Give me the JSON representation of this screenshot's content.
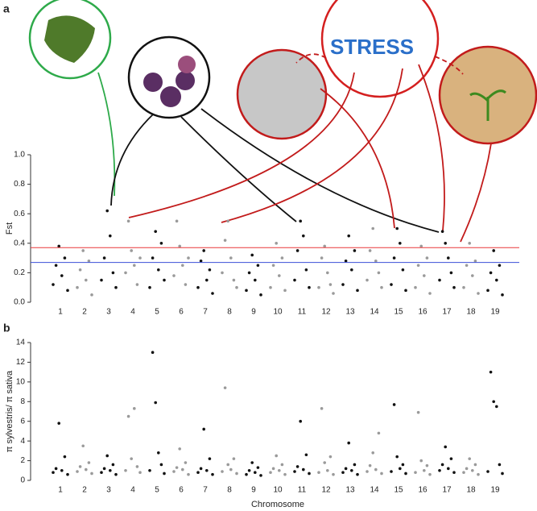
{
  "illustration": {
    "label": "STRESS"
  },
  "chart_data": [
    {
      "type": "scatter",
      "panel_label": "a",
      "ylabel": "Fst",
      "xlim": [
        0,
        20
      ],
      "xticks": [
        1,
        2,
        3,
        4,
        5,
        6,
        7,
        8,
        9,
        10,
        11,
        12,
        13,
        14,
        15,
        16,
        17,
        18,
        19
      ],
      "ylim": [
        0,
        1
      ],
      "yticks": [
        {
          "value": 0,
          "label": "0.0"
        },
        0.2,
        0.4,
        0.6,
        0.8,
        {
          "value": 1,
          "label": "1.0"
        }
      ],
      "colors": [
        "#111111",
        "#9a9a9a"
      ],
      "threshold_lines": [
        {
          "value": 0.37,
          "color": "#e8393a"
        },
        {
          "value": 0.27,
          "color": "#3b4fd8"
        }
      ],
      "x": [
        0.7,
        0.82,
        0.94,
        1.06,
        1.18,
        1.3,
        1.7,
        1.82,
        1.94,
        2.06,
        2.18,
        2.3,
        2.7,
        2.82,
        2.94,
        3.06,
        3.18,
        3.3,
        3.7,
        3.82,
        3.94,
        4.06,
        4.18,
        4.3,
        4.7,
        4.82,
        4.94,
        5.06,
        5.18,
        5.3,
        5.7,
        5.82,
        5.94,
        6.06,
        6.18,
        6.3,
        6.7,
        6.82,
        6.94,
        7.06,
        7.18,
        7.3,
        7.7,
        7.82,
        7.94,
        8.06,
        8.18,
        8.3,
        8.7,
        8.82,
        8.94,
        9.06,
        9.18,
        9.3,
        9.7,
        9.82,
        9.94,
        10.06,
        10.18,
        10.3,
        10.7,
        10.82,
        10.94,
        11.06,
        11.18,
        11.3,
        11.7,
        11.82,
        11.94,
        12.06,
        12.18,
        12.3,
        12.7,
        12.82,
        12.94,
        13.06,
        13.18,
        13.3,
        13.7,
        13.82,
        13.94,
        14.06,
        14.18,
        14.3,
        14.7,
        14.82,
        14.94,
        15.06,
        15.18,
        15.3,
        15.7,
        15.82,
        15.94,
        16.06,
        16.18,
        16.3,
        16.7,
        16.82,
        16.94,
        17.06,
        17.18,
        17.3,
        17.7,
        17.82,
        17.94,
        18.06,
        18.18,
        18.3,
        18.7,
        18.82,
        18.94,
        19.06,
        19.18,
        19.3
      ],
      "values": [
        0.12,
        0.25,
        0.38,
        0.18,
        0.3,
        0.08,
        0.1,
        0.22,
        0.35,
        0.15,
        0.28,
        0.05,
        0.15,
        0.3,
        0.62,
        0.45,
        0.2,
        0.1,
        0.2,
        0.55,
        0.35,
        0.25,
        0.12,
        0.3,
        0.1,
        0.3,
        0.48,
        0.22,
        0.4,
        0.15,
        0.18,
        0.55,
        0.38,
        0.25,
        0.12,
        0.3,
        0.1,
        0.28,
        0.35,
        0.15,
        0.22,
        0.06,
        0.2,
        0.42,
        0.55,
        0.3,
        0.15,
        0.1,
        0.08,
        0.2,
        0.32,
        0.15,
        0.25,
        0.05,
        0.1,
        0.25,
        0.4,
        0.18,
        0.3,
        0.08,
        0.15,
        0.35,
        0.55,
        0.45,
        0.22,
        0.1,
        0.1,
        0.3,
        0.38,
        0.2,
        0.12,
        0.06,
        0.12,
        0.28,
        0.45,
        0.22,
        0.35,
        0.08,
        0.15,
        0.35,
        0.5,
        0.28,
        0.2,
        0.1,
        0.12,
        0.3,
        0.5,
        0.4,
        0.22,
        0.08,
        0.1,
        0.25,
        0.38,
        0.18,
        0.3,
        0.06,
        0.15,
        0.48,
        0.4,
        0.3,
        0.2,
        0.1,
        0.1,
        0.25,
        0.4,
        0.18,
        0.28,
        0.06,
        0.08,
        0.2,
        0.35,
        0.15,
        0.25,
        0.05
      ]
    },
    {
      "type": "scatter",
      "panel_label": "b",
      "ylabel": "π sylvestris/ π sativa",
      "xlabel": "Chromosome",
      "xlim": [
        0,
        20
      ],
      "xticks": [
        1,
        2,
        3,
        4,
        5,
        6,
        7,
        8,
        9,
        10,
        11,
        12,
        13,
        14,
        15,
        16,
        17,
        18,
        19
      ],
      "ylim": [
        0,
        14
      ],
      "yticks": [
        0,
        2,
        4,
        6,
        8,
        10,
        12,
        14
      ],
      "colors": [
        "#111111",
        "#9a9a9a"
      ],
      "x": [
        0.7,
        0.82,
        0.94,
        1.06,
        1.18,
        1.3,
        1.7,
        1.82,
        1.94,
        2.06,
        2.18,
        2.3,
        2.7,
        2.82,
        2.94,
        3.06,
        3.18,
        3.3,
        3.7,
        3.82,
        3.94,
        4.06,
        4.18,
        4.3,
        4.7,
        4.82,
        4.94,
        5.06,
        5.18,
        5.3,
        5.7,
        5.82,
        5.94,
        6.06,
        6.18,
        6.3,
        6.7,
        6.82,
        6.94,
        7.06,
        7.18,
        7.3,
        7.7,
        7.82,
        7.94,
        8.06,
        8.18,
        8.3,
        8.7,
        8.82,
        8.94,
        9.06,
        9.18,
        9.3,
        9.7,
        9.82,
        9.94,
        10.06,
        10.18,
        10.3,
        10.7,
        10.82,
        10.94,
        11.06,
        11.18,
        11.3,
        11.7,
        11.82,
        11.94,
        12.06,
        12.18,
        12.3,
        12.7,
        12.82,
        12.94,
        13.06,
        13.18,
        13.3,
        13.7,
        13.82,
        13.94,
        14.06,
        14.18,
        14.3,
        14.7,
        14.82,
        14.94,
        15.06,
        15.18,
        15.3,
        15.7,
        15.82,
        15.94,
        16.06,
        16.18,
        16.3,
        16.7,
        16.82,
        16.94,
        17.06,
        17.18,
        17.3,
        17.7,
        17.82,
        17.94,
        18.06,
        18.18,
        18.3,
        18.7,
        18.82,
        18.94,
        19.06,
        19.18,
        19.3
      ],
      "values": [
        0.8,
        1.2,
        5.8,
        1.0,
        2.4,
        0.6,
        0.9,
        1.4,
        3.5,
        1.1,
        1.8,
        0.7,
        0.8,
        1.2,
        2.5,
        1.0,
        1.6,
        0.6,
        1.0,
        6.5,
        2.2,
        7.3,
        1.4,
        0.8,
        1.0,
        13.0,
        7.9,
        2.8,
        1.6,
        0.7,
        0.9,
        1.3,
        3.2,
        1.1,
        1.8,
        0.6,
        0.8,
        1.2,
        5.2,
        1.0,
        2.2,
        0.6,
        0.9,
        9.4,
        1.6,
        1.1,
        2.2,
        0.7,
        0.6,
        1.0,
        1.8,
        0.8,
        1.3,
        0.5,
        0.8,
        1.2,
        2.5,
        1.0,
        1.6,
        0.6,
        0.9,
        1.4,
        6.0,
        1.1,
        2.6,
        0.7,
        0.8,
        7.3,
        1.8,
        1.0,
        2.4,
        0.6,
        0.8,
        1.2,
        3.8,
        1.0,
        1.6,
        0.6,
        0.9,
        1.5,
        2.8,
        1.1,
        4.8,
        0.7,
        0.9,
        7.7,
        2.4,
        1.2,
        1.6,
        0.7,
        0.8,
        6.9,
        2.0,
        1.0,
        1.5,
        0.6,
        1.0,
        1.6,
        3.4,
        1.2,
        2.2,
        0.8,
        0.8,
        1.2,
        2.2,
        1.0,
        1.6,
        0.6,
        0.9,
        11.0,
        8.0,
        7.5,
        1.6,
        0.7
      ]
    }
  ]
}
